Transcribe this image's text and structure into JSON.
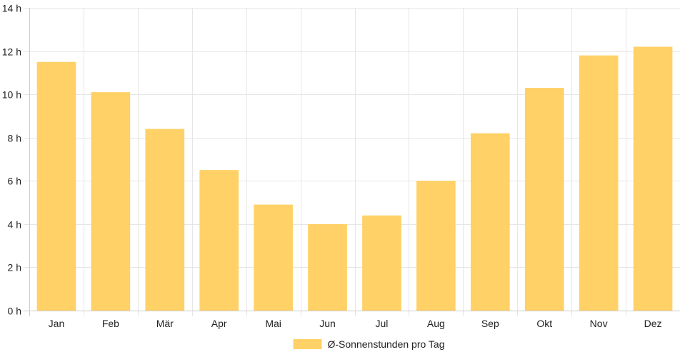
{
  "chart_data": {
    "type": "bar",
    "categories": [
      "Jan",
      "Feb",
      "Mär",
      "Apr",
      "Mai",
      "Jun",
      "Jul",
      "Aug",
      "Sep",
      "Okt",
      "Nov",
      "Dez"
    ],
    "series": [
      {
        "name": "Ø-Sonnenstunden pro Tag",
        "values": [
          11.5,
          10.1,
          8.4,
          6.5,
          4.9,
          4.0,
          4.4,
          6.0,
          8.2,
          10.3,
          11.8,
          12.2
        ],
        "color": "#ffd166"
      }
    ],
    "ylim": [
      0,
      14
    ],
    "y_ticks": [
      0,
      2,
      4,
      6,
      8,
      10,
      12,
      14
    ],
    "y_tick_suffix": " h",
    "grid": true,
    "legend_position": "bottom",
    "colors": {
      "grid": "#e6e6e6",
      "axis": "#cccccc",
      "text": "#222222"
    }
  }
}
